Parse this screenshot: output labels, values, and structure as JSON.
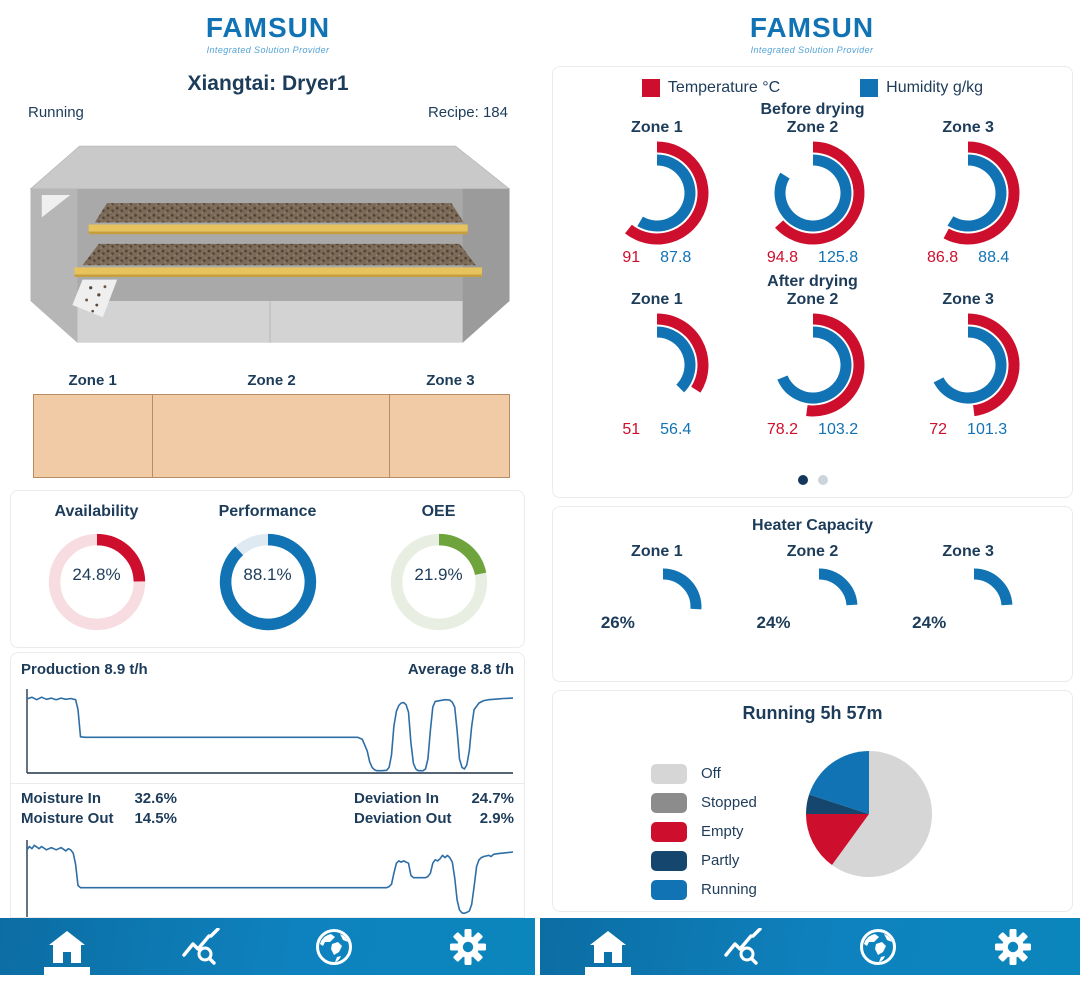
{
  "brand": {
    "logo": "FAMSUN",
    "tagline": "Integrated Solution Provider"
  },
  "colors": {
    "brand_blue": "#1173b4",
    "navy_text": "#1d3c5a",
    "temperature": "#ce0e2d",
    "humidity": "#1173b4",
    "line_blue": "#2e6ea6"
  },
  "left": {
    "title": "Xiangtai: Dryer1",
    "status": "Running",
    "recipe": "Recipe: 184",
    "zones": [
      "Zone 1",
      "Zone 2",
      "Zone 3"
    ],
    "oee": {
      "items": [
        {
          "label": "Availability",
          "display": "24.8%",
          "value": 24.8,
          "color": "#ce0e2d",
          "track": "#f7dde2"
        },
        {
          "label": "Performance",
          "display": "88.1%",
          "value": 88.1,
          "color": "#1173b4",
          "track": "#dfe9f2"
        },
        {
          "label": "OEE",
          "display": "21.9%",
          "value": 21.9,
          "color": "#6fa43c",
          "track": "#e8eee1"
        }
      ]
    },
    "production": {
      "left_label": "Production 8.9 t/h",
      "right_label": "Average 8.8 t/h"
    },
    "moisture": {
      "rows_left": [
        {
          "label": "Moisture In",
          "value": "32.6%"
        },
        {
          "label": "Moisture Out",
          "value": "14.5%"
        }
      ],
      "rows_right": [
        {
          "label": "Deviation In",
          "value": "24.7%"
        },
        {
          "label": "Deviation Out",
          "value": "2.9%"
        }
      ]
    }
  },
  "right": {
    "legend": [
      {
        "label": "Temperature °C",
        "color": "#ce0e2d"
      },
      {
        "label": "Humidity g/kg",
        "color": "#1173b4"
      }
    ],
    "gauge_max": 150,
    "before": {
      "title": "Before drying",
      "gauges": [
        {
          "zone": "Zone 1",
          "temp": 91,
          "temp_display": "91",
          "hum": 87.8,
          "hum_display": "87.8"
        },
        {
          "zone": "Zone 2",
          "temp": 94.8,
          "temp_display": "94.8",
          "hum": 125.8,
          "hum_display": "125.8"
        },
        {
          "zone": "Zone 3",
          "temp": 86.8,
          "temp_display": "86.8",
          "hum": 88.4,
          "hum_display": "88.4"
        }
      ]
    },
    "after": {
      "title": "After drying",
      "gauges": [
        {
          "zone": "Zone 1",
          "temp": 51,
          "temp_display": "51",
          "hum": 56.4,
          "hum_display": "56.4"
        },
        {
          "zone": "Zone 2",
          "temp": 78.2,
          "temp_display": "78.2",
          "hum": 103.2,
          "hum_display": "103.2"
        },
        {
          "zone": "Zone 3",
          "temp": 72,
          "temp_display": "72",
          "hum": 101.3,
          "hum_display": "101.3"
        }
      ]
    },
    "pager": {
      "dots": 2,
      "active_index": 0
    },
    "heater": {
      "title": "Heater Capacity",
      "items": [
        {
          "zone": "Zone 1",
          "value": 26,
          "display": "26%"
        },
        {
          "zone": "Zone 2",
          "value": 24,
          "display": "24%"
        },
        {
          "zone": "Zone 3",
          "value": 24,
          "display": "24%"
        }
      ]
    },
    "running": {
      "title": "Running 5h 57m",
      "slices": [
        {
          "label": "Off",
          "color": "#d6d6d6",
          "pct": 60
        },
        {
          "label": "Stopped",
          "color": "#8c8c8c",
          "pct": 0
        },
        {
          "label": "Empty",
          "color": "#ce0e2d",
          "pct": 15
        },
        {
          "label": "Partly",
          "color": "#14466e",
          "pct": 5
        },
        {
          "label": "Running",
          "color": "#1173b4",
          "pct": 20
        }
      ]
    }
  },
  "nav": {
    "items": [
      "home",
      "trend-search",
      "globe",
      "settings"
    ],
    "active": "home"
  },
  "chart_data": [
    {
      "id": "oee_donuts",
      "type": "pie",
      "title": "OEE donuts",
      "items": [
        {
          "label": "Availability",
          "value_pct": 24.8
        },
        {
          "label": "Performance",
          "value_pct": 88.1
        },
        {
          "label": "OEE",
          "value_pct": 21.9
        }
      ]
    },
    {
      "id": "before_drying",
      "type": "pie",
      "title": "Before drying ring gauges (max 150, clockwise from top)",
      "series": [
        {
          "name": "Temperature °C",
          "values": [
            91,
            94.8,
            86.8
          ]
        },
        {
          "name": "Humidity g/kg",
          "values": [
            87.8,
            125.8,
            88.4
          ]
        }
      ],
      "categories": [
        "Zone 1",
        "Zone 2",
        "Zone 3"
      ]
    },
    {
      "id": "after_drying",
      "type": "pie",
      "title": "After drying ring gauges (max 150, clockwise from top)",
      "series": [
        {
          "name": "Temperature °C",
          "values": [
            51,
            78.2,
            72
          ]
        },
        {
          "name": "Humidity g/kg",
          "values": [
            56.4,
            103.2,
            101.3
          ]
        }
      ],
      "categories": [
        "Zone 1",
        "Zone 2",
        "Zone 3"
      ]
    },
    {
      "id": "heater_capacity",
      "type": "pie",
      "title": "Heater Capacity",
      "categories": [
        "Zone 1",
        "Zone 2",
        "Zone 3"
      ],
      "values": [
        26,
        24,
        24
      ]
    },
    {
      "id": "runtime_pie",
      "type": "pie",
      "title": "Running 5h 57m",
      "categories": [
        "Off",
        "Stopped",
        "Empty",
        "Partly",
        "Running"
      ],
      "values": [
        60,
        0,
        15,
        5,
        20
      ]
    },
    {
      "id": "production_trend",
      "type": "line",
      "title": "Production 8.9 t/h, Average 8.8 t/h",
      "ylabel": "t/h",
      "ylim": [
        0,
        10
      ],
      "xlim": [
        0,
        100
      ],
      "points": [
        [
          0,
          8.8
        ],
        [
          1,
          9.0
        ],
        [
          2,
          8.7
        ],
        [
          3,
          9.0
        ],
        [
          4,
          8.75
        ],
        [
          5,
          8.9
        ],
        [
          6,
          8.7
        ],
        [
          7,
          8.9
        ],
        [
          8,
          8.75
        ],
        [
          9,
          8.85
        ],
        [
          10,
          8.7
        ],
        [
          10.5,
          7.5
        ],
        [
          11,
          4.2
        ],
        [
          12,
          4.15
        ],
        [
          25,
          4.15
        ],
        [
          45,
          4.15
        ],
        [
          60,
          4.15
        ],
        [
          68,
          4.15
        ],
        [
          69,
          3.9
        ],
        [
          70,
          2.5
        ],
        [
          70.5,
          1.2
        ],
        [
          71,
          0.5
        ],
        [
          71.5,
          0.2
        ],
        [
          72,
          0.1
        ],
        [
          73,
          0.1
        ],
        [
          74,
          0.15
        ],
        [
          74.5,
          0.5
        ],
        [
          75,
          2.0
        ],
        [
          75.5,
          5.5
        ],
        [
          76,
          7.3
        ],
        [
          76.5,
          8.0
        ],
        [
          77,
          8.3
        ],
        [
          77.5,
          8.35
        ],
        [
          78,
          8.1
        ],
        [
          78.5,
          7.2
        ],
        [
          79,
          3.5
        ],
        [
          79.5,
          1.0
        ],
        [
          80,
          0.3
        ],
        [
          80.5,
          0.1
        ],
        [
          81.5,
          0.1
        ],
        [
          82,
          0.3
        ],
        [
          82.5,
          1.5
        ],
        [
          83,
          5.0
        ],
        [
          83.5,
          7.8
        ],
        [
          84,
          8.5
        ],
        [
          85,
          8.6
        ],
        [
          86,
          8.7
        ],
        [
          87,
          8.65
        ],
        [
          87.5,
          8.4
        ],
        [
          88,
          7.8
        ],
        [
          88.5,
          5.0
        ],
        [
          89,
          1.5
        ],
        [
          89.5,
          0.5
        ],
        [
          90,
          0.3
        ],
        [
          90.5,
          0.8
        ],
        [
          91,
          2.5
        ],
        [
          91.5,
          5.5
        ],
        [
          92,
          7.5
        ],
        [
          93,
          8.3
        ],
        [
          94,
          8.6
        ],
        [
          95,
          8.7
        ],
        [
          96,
          8.75
        ],
        [
          97,
          8.8
        ],
        [
          98,
          8.85
        ],
        [
          100,
          8.9
        ]
      ]
    },
    {
      "id": "moisture_trend",
      "type": "line",
      "title": "Moisture In/Out trend",
      "ylabel": "%",
      "ylim": [
        0,
        35
      ],
      "xlim": [
        0,
        100
      ],
      "points": [
        [
          0,
          31.5
        ],
        [
          0.5,
          33
        ],
        [
          1,
          32
        ],
        [
          1.5,
          33.5
        ],
        [
          2.5,
          32
        ],
        [
          3,
          33
        ],
        [
          4,
          31.5
        ],
        [
          5,
          32.5
        ],
        [
          6,
          31.5
        ],
        [
          7,
          32.5
        ],
        [
          8,
          31
        ],
        [
          8.5,
          32
        ],
        [
          9,
          31.5
        ],
        [
          9.5,
          30
        ],
        [
          10,
          25
        ],
        [
          10.5,
          15.5
        ],
        [
          11,
          14.5
        ],
        [
          25,
          14.5
        ],
        [
          45,
          14.5
        ],
        [
          60,
          14.5
        ],
        [
          70,
          14.5
        ],
        [
          74,
          14.5
        ],
        [
          74.5,
          15
        ],
        [
          75,
          16
        ],
        [
          75.5,
          21
        ],
        [
          76,
          25.5
        ],
        [
          76.5,
          26.5
        ],
        [
          77,
          26
        ],
        [
          77.5,
          26.5
        ],
        [
          78,
          26
        ],
        [
          78.5,
          25.5
        ],
        [
          79,
          20
        ],
        [
          79.5,
          19
        ],
        [
          80,
          19
        ],
        [
          82,
          19
        ],
        [
          82.5,
          19.5
        ],
        [
          83,
          21
        ],
        [
          83.5,
          25.5
        ],
        [
          84,
          27
        ],
        [
          84.5,
          26.5
        ],
        [
          85,
          27.5
        ],
        [
          85.5,
          29
        ],
        [
          86,
          28
        ],
        [
          86.5,
          29
        ],
        [
          87,
          28
        ],
        [
          87.5,
          26
        ],
        [
          88,
          19
        ],
        [
          88.5,
          9
        ],
        [
          89,
          4.5
        ],
        [
          89.5,
          3.2
        ],
        [
          90,
          3
        ],
        [
          90.5,
          3.4
        ],
        [
          91,
          4
        ],
        [
          91.5,
          7
        ],
        [
          92,
          15
        ],
        [
          92.5,
          24
        ],
        [
          93,
          27
        ],
        [
          93.5,
          28
        ],
        [
          94,
          28.5
        ],
        [
          95,
          29
        ],
        [
          95.5,
          28.5
        ],
        [
          96,
          29.5
        ],
        [
          97,
          29.8
        ],
        [
          98,
          30
        ],
        [
          100,
          30.5
        ]
      ]
    }
  ]
}
